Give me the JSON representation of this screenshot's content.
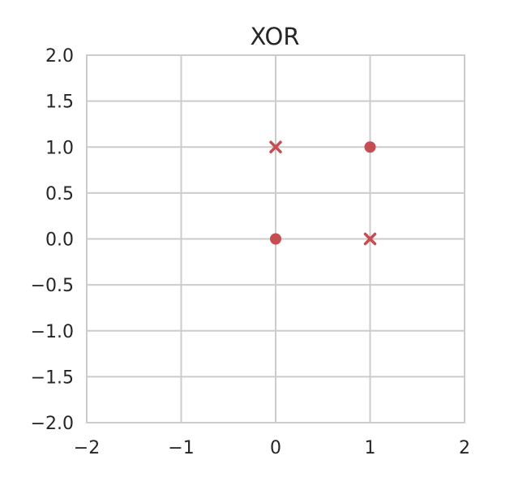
{
  "chart_data": {
    "type": "scatter",
    "title": "XOR",
    "xlabel": "",
    "ylabel": "",
    "xlim": [
      -2,
      2
    ],
    "ylim": [
      -2,
      2
    ],
    "grid": true,
    "x_ticks": [
      -2,
      -1,
      0,
      1,
      2
    ],
    "x_tick_labels": [
      "−2",
      "−1",
      "0",
      "1",
      "2"
    ],
    "y_ticks": [
      2.0,
      1.5,
      1.0,
      0.5,
      0.0,
      -0.5,
      -1.0,
      -1.5,
      -2.0
    ],
    "y_tick_labels": [
      "2.0",
      "1.5",
      "1.0",
      "0.5",
      "0.0",
      "−0.5",
      "−1.0",
      "−1.5",
      "−2.0"
    ],
    "series": [
      {
        "marker": "circle",
        "color": "#c44e52",
        "points": [
          {
            "x": 0,
            "y": 0
          },
          {
            "x": 1,
            "y": 1
          }
        ]
      },
      {
        "marker": "x",
        "color": "#c44e52",
        "points": [
          {
            "x": 0,
            "y": 1
          },
          {
            "x": 1,
            "y": 0
          }
        ]
      }
    ]
  }
}
